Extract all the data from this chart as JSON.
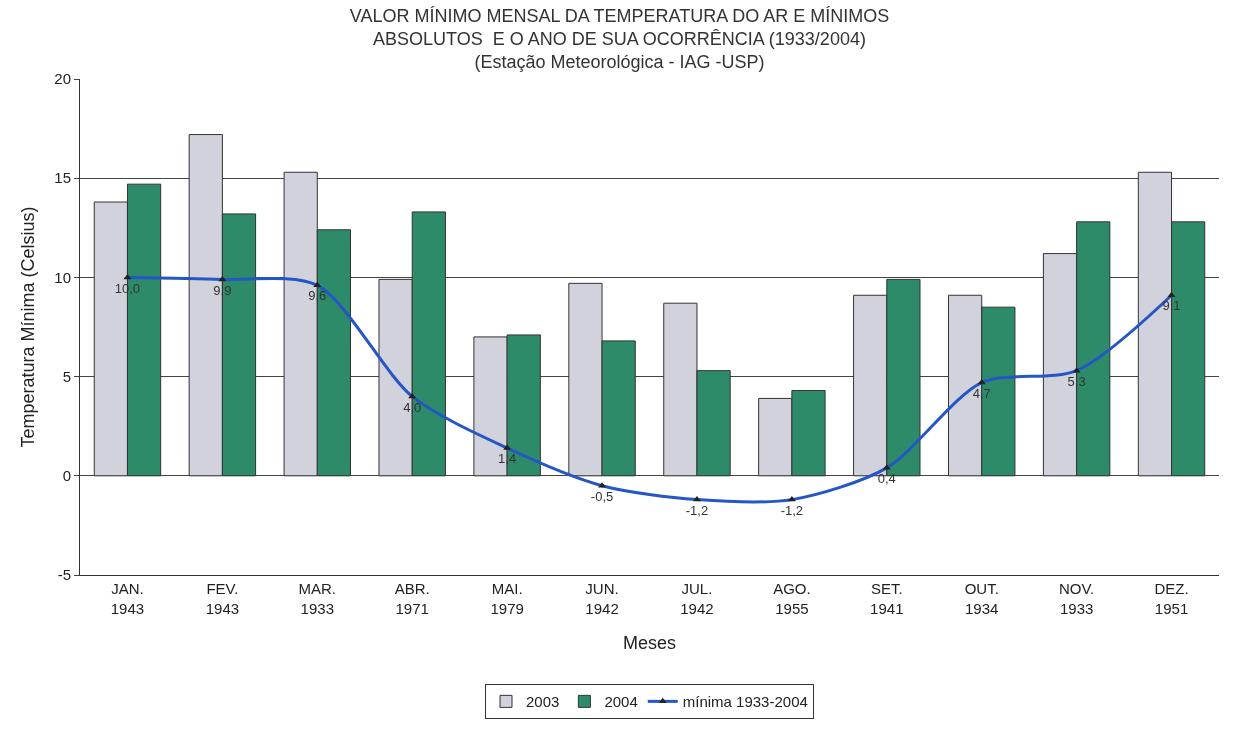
{
  "chart_data": {
    "type": "bar",
    "title": "VALOR MÍNIMO MENSAL DA TEMPERATURA DO AR E MÍNIMOS\nABSOLUTOS  E O ANO DE SUA OCORRÊNCIA (1933/2004)\n(Estação Meteorológica - IAG -USP)",
    "xlabel": "Meses",
    "ylabel": "Temperatura Mínima (Celsius)",
    "categories": [
      "JAN.\n1943",
      "FEV.\n1943",
      "MAR.\n1933",
      "ABR.\n1971",
      "MAI.\n1979",
      "JUN.\n1942",
      "JUL.\n1942",
      "AGO.\n1955",
      "SET.\n1941",
      "OUT.\n1934",
      "NOV.\n1933",
      "DEZ.\n1951"
    ],
    "series": [
      {
        "name": "2003",
        "color": "#d2d2dc",
        "values": [
          13.8,
          17.2,
          15.3,
          9.9,
          7.0,
          9.7,
          8.7,
          3.9,
          9.1,
          9.1,
          11.2,
          15.3
        ]
      },
      {
        "name": "2004",
        "color": "#2e8b6a",
        "values": [
          14.7,
          13.2,
          12.4,
          13.3,
          7.1,
          6.8,
          5.3,
          4.3,
          9.9,
          8.5,
          12.8,
          12.8
        ]
      },
      {
        "name": "mínima 1933-2004",
        "type": "line",
        "color": "#2457c5",
        "marker": "triangle",
        "values": [
          10.0,
          9.9,
          9.6,
          4.0,
          1.4,
          -0.5,
          -1.2,
          -1.2,
          0.4,
          4.7,
          5.3,
          9.1
        ],
        "value_labels": [
          "10,0",
          "9,9",
          "9,6",
          "4,0",
          "1,4",
          "-0,5",
          "-1,2",
          "-1,2",
          "0,4",
          "4,7",
          "5,3",
          "9,1"
        ]
      }
    ],
    "ylim": [
      -5,
      20
    ],
    "yticks": [
      -5,
      0,
      5,
      10,
      15,
      20
    ],
    "grid": "y",
    "legend": "bottom"
  }
}
